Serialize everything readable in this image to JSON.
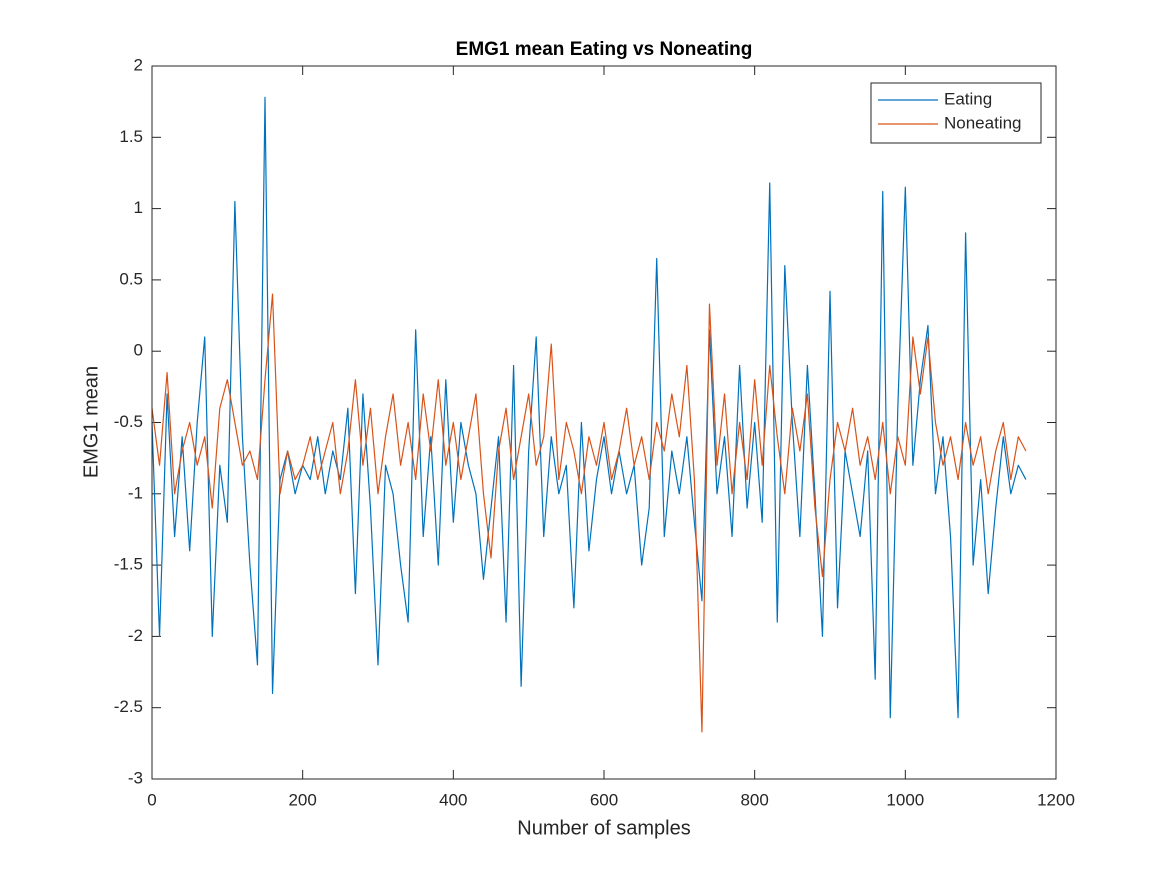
{
  "chart_data": {
    "type": "line",
    "title": "EMG1 mean Eating vs Noneating",
    "x_label": "Number of samples",
    "y_label": "EMG1 mean",
    "x": [
      0,
      10,
      20,
      30,
      40,
      50,
      60,
      70,
      80,
      90,
      100,
      110,
      120,
      130,
      140,
      150,
      160,
      170,
      180,
      190,
      200,
      210,
      220,
      230,
      240,
      250,
      260,
      270,
      280,
      290,
      300,
      310,
      320,
      330,
      340,
      350,
      360,
      370,
      380,
      390,
      400,
      410,
      420,
      430,
      440,
      450,
      460,
      470,
      480,
      490,
      500,
      510,
      520,
      530,
      540,
      550,
      560,
      570,
      580,
      590,
      600,
      610,
      620,
      630,
      640,
      650,
      660,
      670,
      680,
      690,
      700,
      710,
      720,
      730,
      740,
      750,
      760,
      770,
      780,
      790,
      800,
      810,
      820,
      830,
      840,
      850,
      860,
      870,
      880,
      890,
      900,
      910,
      920,
      930,
      940,
      950,
      960,
      970,
      980,
      990,
      1000,
      1010,
      1020,
      1030,
      1040,
      1050,
      1060,
      1070,
      1080,
      1090,
      1100,
      1110,
      1120,
      1130,
      1140,
      1150,
      1160
    ],
    "series": [
      {
        "name": "Eating",
        "color": "#0072BD",
        "values": [
          -0.5,
          -2.0,
          -0.3,
          -1.3,
          -0.6,
          -1.4,
          -0.5,
          0.1,
          -2.0,
          -0.8,
          -1.2,
          1.05,
          -0.6,
          -1.5,
          -2.2,
          1.78,
          -2.4,
          -0.9,
          -0.7,
          -1.0,
          -0.8,
          -0.9,
          -0.6,
          -1.0,
          -0.7,
          -0.9,
          -0.4,
          -1.7,
          -0.3,
          -1.1,
          -2.2,
          -0.8,
          -1.0,
          -1.5,
          -1.9,
          0.15,
          -1.3,
          -0.6,
          -1.5,
          -0.2,
          -1.2,
          -0.5,
          -0.8,
          -1.0,
          -1.6,
          -1.1,
          -0.6,
          -1.9,
          -0.1,
          -2.35,
          -0.7,
          0.1,
          -1.3,
          -0.6,
          -1.0,
          -0.8,
          -1.8,
          -0.5,
          -1.4,
          -0.9,
          -0.6,
          -1.0,
          -0.7,
          -1.0,
          -0.8,
          -1.5,
          -1.1,
          0.65,
          -1.3,
          -0.7,
          -1.0,
          -0.6,
          -1.2,
          -1.75,
          0.15,
          -1.0,
          -0.6,
          -1.3,
          -0.1,
          -1.1,
          -0.5,
          -1.2,
          1.18,
          -1.9,
          0.6,
          -0.5,
          -1.3,
          -0.1,
          -1.0,
          -2.0,
          0.42,
          -1.8,
          -0.7,
          -1.0,
          -1.3,
          -0.7,
          -2.3,
          1.12,
          -2.57,
          -0.4,
          1.15,
          -0.8,
          -0.2,
          0.18,
          -1.0,
          -0.6,
          -1.3,
          -2.57,
          0.83,
          -1.5,
          -0.9,
          -1.7,
          -1.1,
          -0.6,
          -1.0,
          -0.8,
          -0.9
        ]
      },
      {
        "name": "Noneating",
        "color": "#D95319",
        "values": [
          -0.4,
          -0.8,
          -0.15,
          -1.0,
          -0.7,
          -0.5,
          -0.8,
          -0.6,
          -1.1,
          -0.4,
          -0.2,
          -0.5,
          -0.8,
          -0.7,
          -0.9,
          -0.2,
          0.4,
          -1.0,
          -0.7,
          -0.9,
          -0.8,
          -0.6,
          -0.9,
          -0.7,
          -0.5,
          -1.0,
          -0.7,
          -0.2,
          -0.8,
          -0.4,
          -1.0,
          -0.6,
          -0.3,
          -0.8,
          -0.5,
          -0.9,
          -0.3,
          -0.7,
          -0.2,
          -0.8,
          -0.5,
          -0.9,
          -0.6,
          -0.3,
          -1.0,
          -1.45,
          -0.7,
          -0.4,
          -0.9,
          -0.6,
          -0.3,
          -0.8,
          -0.6,
          0.05,
          -0.9,
          -0.5,
          -0.7,
          -1.0,
          -0.6,
          -0.8,
          -0.5,
          -0.9,
          -0.7,
          -0.4,
          -0.8,
          -0.6,
          -0.9,
          -0.5,
          -0.7,
          -0.3,
          -0.6,
          -0.1,
          -0.9,
          -2.67,
          0.33,
          -0.8,
          -0.3,
          -1.0,
          -0.5,
          -0.9,
          -0.2,
          -0.8,
          -0.1,
          -0.6,
          -1.0,
          -0.4,
          -0.7,
          -0.3,
          -1.1,
          -1.58,
          -0.9,
          -0.5,
          -0.7,
          -0.4,
          -0.8,
          -0.6,
          -0.9,
          -0.5,
          -1.0,
          -0.6,
          -0.8,
          0.1,
          -0.3,
          0.1,
          -0.5,
          -0.8,
          -0.6,
          -0.9,
          -0.5,
          -0.8,
          -0.6,
          -1.0,
          -0.7,
          -0.5,
          -0.9,
          -0.6,
          -0.7
        ]
      }
    ],
    "xlim": [
      0,
      1200
    ],
    "xticks": [
      0,
      200,
      400,
      600,
      800,
      1000,
      1200
    ],
    "ylim": [
      -3,
      2
    ],
    "yticks": [
      -3,
      -2.5,
      -2,
      -1.5,
      -1,
      -0.5,
      0,
      0.5,
      1,
      1.5,
      2
    ],
    "grid": false,
    "legend": "northeast"
  }
}
